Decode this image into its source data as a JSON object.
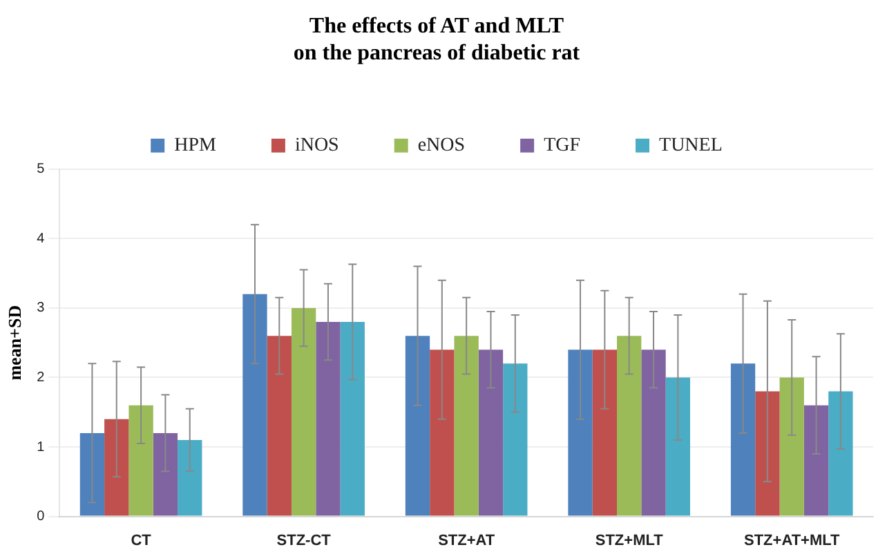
{
  "chart_data": {
    "type": "bar",
    "title": "The effects of AT and MLT\non the pancreas of diabetic rat",
    "ylabel": "mean+SD",
    "categories": [
      "CT",
      "STZ-CT",
      "STZ+AT",
      "STZ+MLT",
      "STZ+AT+MLT"
    ],
    "series": [
      {
        "name": "HPM",
        "color": "#4f81bd",
        "values": [
          1.2,
          3.2,
          2.6,
          2.4,
          2.2
        ],
        "errors": [
          1.0,
          1.0,
          1.0,
          1.0,
          1.0
        ]
      },
      {
        "name": "iNOS",
        "color": "#c0504d",
        "values": [
          1.4,
          2.6,
          2.4,
          2.4,
          1.8
        ],
        "errors": [
          0.83,
          0.55,
          1.0,
          0.85,
          1.3
        ]
      },
      {
        "name": "eNOS",
        "color": "#9bbb59",
        "values": [
          1.6,
          3.0,
          2.6,
          2.6,
          2.0
        ],
        "errors": [
          0.55,
          0.55,
          0.55,
          0.55,
          0.83
        ]
      },
      {
        "name": "TGF",
        "color": "#8064a2",
        "values": [
          1.2,
          2.8,
          2.4,
          2.4,
          1.6
        ],
        "errors": [
          0.55,
          0.55,
          0.55,
          0.55,
          0.7
        ]
      },
      {
        "name": "TUNEL",
        "color": "#4bacc6",
        "values": [
          1.1,
          2.8,
          2.2,
          2.0,
          1.8
        ],
        "errors": [
          0.45,
          0.83,
          0.7,
          0.9,
          0.83
        ]
      }
    ],
    "ylim": [
      0,
      5
    ],
    "yticks": [
      0,
      1,
      2,
      3,
      4,
      5
    ],
    "grid": "y",
    "legend": "top"
  }
}
